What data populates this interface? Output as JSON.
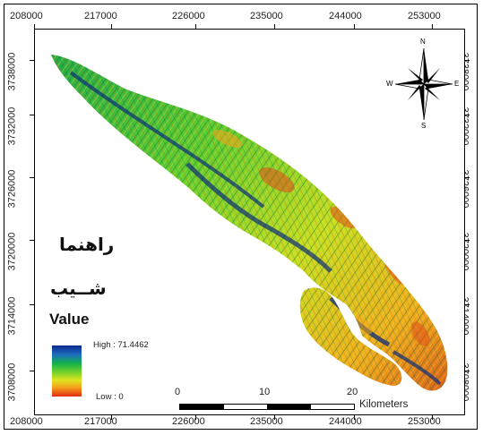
{
  "map": {
    "x_ticks": [
      "208000",
      "217000",
      "226000",
      "235000",
      "244000",
      "253000"
    ],
    "y_ticks": [
      "3738000",
      "3732000",
      "3726000",
      "3720000",
      "3714000",
      "3708000"
    ],
    "colors": {
      "high": "#0a2a8c",
      "mid_high": "#12b24c",
      "mid": "#72d12c",
      "mid_low": "#dfe41f",
      "low": "#e22a10"
    }
  },
  "legend": {
    "title_fa_1": "راهنما",
    "title_fa_2": "شــيب",
    "value_label": "Value",
    "high_label": "High : 71.4462",
    "low_label": "Low : 0"
  },
  "north_arrow": {
    "n": "N",
    "s": "S",
    "e": "E",
    "w": "W"
  },
  "scale_bar": {
    "labels": [
      "0",
      "10",
      "20"
    ],
    "unit": "Kilometers"
  }
}
